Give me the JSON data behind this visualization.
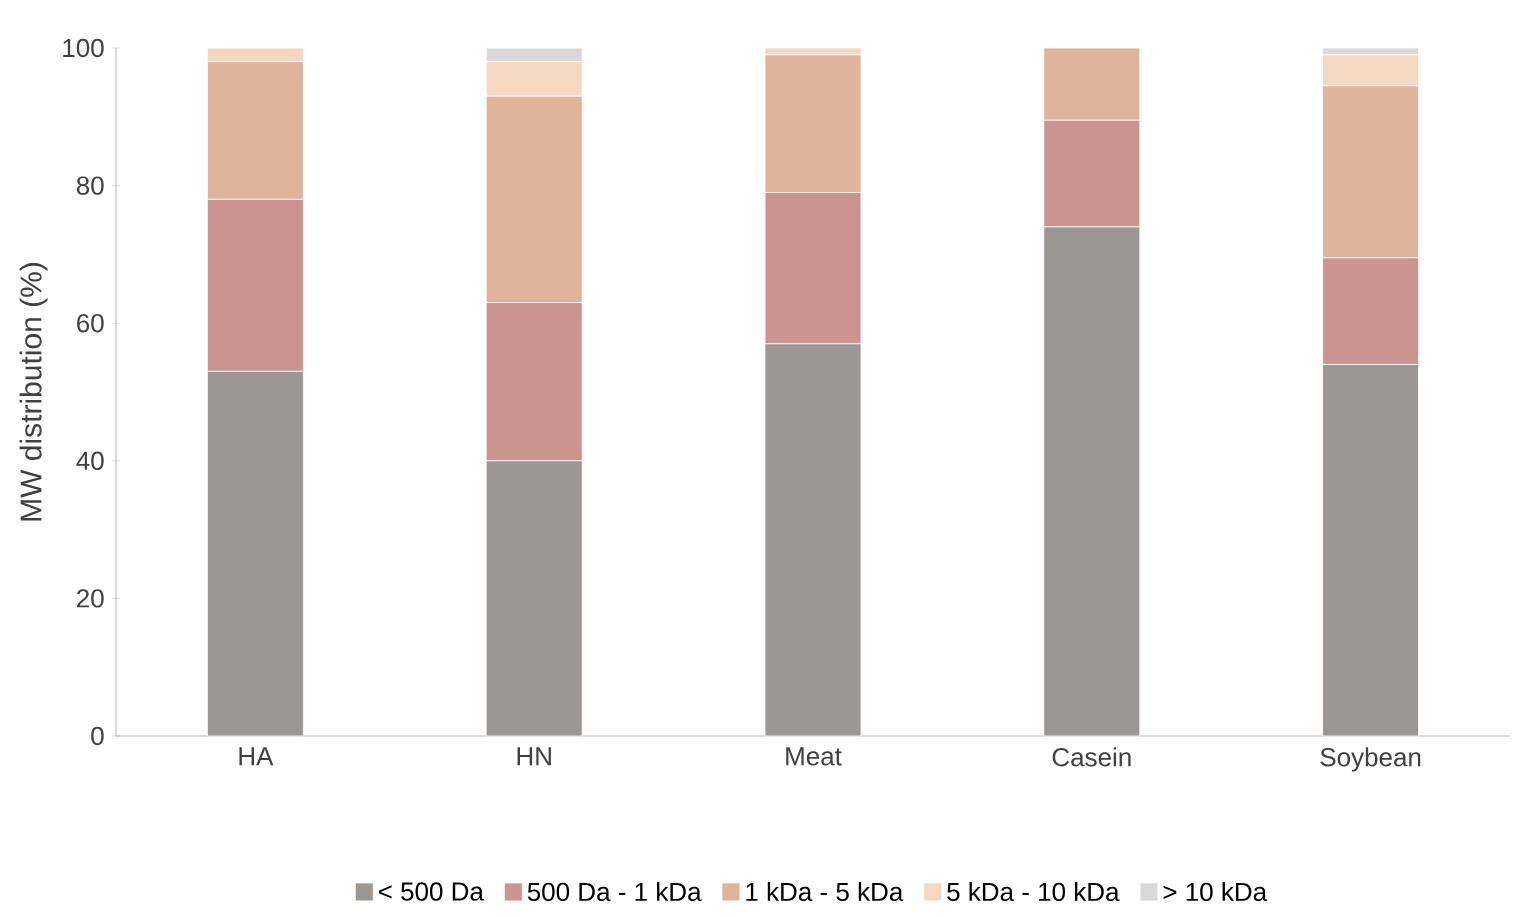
{
  "chart_data": {
    "type": "bar",
    "stacked": true,
    "ylabel": "MW distribution (%)",
    "categories": [
      "HA",
      "HN",
      "Meat",
      "Casein",
      "Soybean"
    ],
    "series": [
      {
        "name": "< 500 Da",
        "color": "#9b9795",
        "values": [
          53,
          40,
          57,
          74,
          54
        ]
      },
      {
        "name": "500 Da - 1 kDa",
        "color": "#cc9490",
        "values": [
          25,
          23,
          22,
          15.5,
          15.5
        ]
      },
      {
        "name": "1 kDa - 5 kDa",
        "color": "#dfb49a",
        "values": [
          20,
          30,
          20,
          10.5,
          25
        ]
      },
      {
        "name": "5 kDa - 10 kDa",
        "color": "#f4d8bf",
        "values": [
          2,
          5,
          1,
          0,
          4.5
        ]
      },
      {
        "name": "> 10 kDa",
        "color": "#d9d9d9",
        "values": [
          0,
          2,
          0,
          0,
          1
        ]
      }
    ],
    "ylim": [
      0,
      100
    ],
    "yticks": [
      0,
      20,
      40,
      60,
      80,
      100
    ],
    "legend": "bottom",
    "grid": false
  }
}
